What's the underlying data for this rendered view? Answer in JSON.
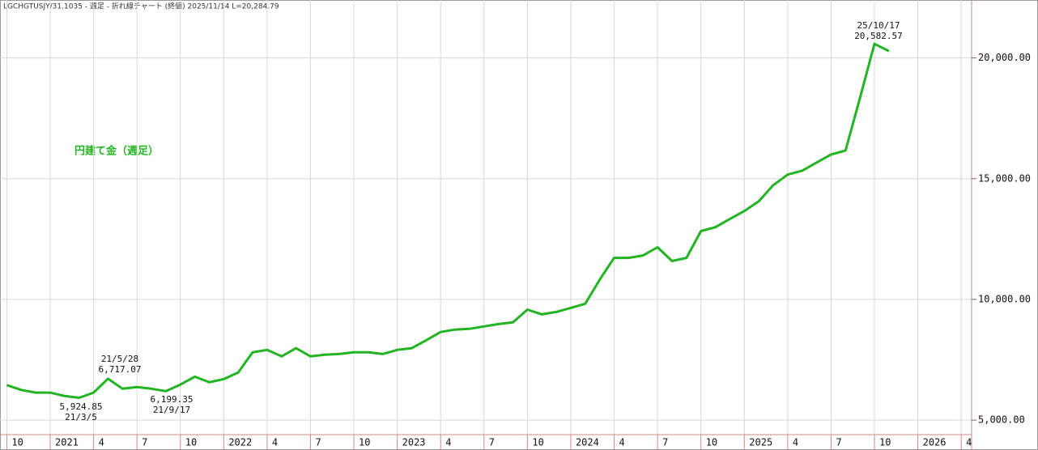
{
  "chart_data": {
    "type": "line",
    "header": "LGCHGTUSJY/31.1035 - 週足 - 折れ線チャート (終値)  2025/11/14 L=20,284.79",
    "legend_label": "円建て金（週足）",
    "x": [
      "2020-10",
      "2020-11",
      "2020-12",
      "2021-01",
      "2021-02",
      "2021-03",
      "2021-04",
      "2021-05",
      "2021-06",
      "2021-07",
      "2021-08",
      "2021-09",
      "2021-10",
      "2021-11",
      "2021-12",
      "2022-01",
      "2022-02",
      "2022-03",
      "2022-04",
      "2022-05",
      "2022-06",
      "2022-07",
      "2022-08",
      "2022-09",
      "2022-10",
      "2022-11",
      "2022-12",
      "2023-01",
      "2023-02",
      "2023-03",
      "2023-04",
      "2023-05",
      "2023-06",
      "2023-07",
      "2023-08",
      "2023-09",
      "2023-10",
      "2023-11",
      "2023-12",
      "2024-01",
      "2024-02",
      "2024-03",
      "2024-04",
      "2024-05",
      "2024-06",
      "2024-07",
      "2024-08",
      "2024-09",
      "2024-10",
      "2024-11",
      "2024-12",
      "2025-01",
      "2025-02",
      "2025-03",
      "2025-04",
      "2025-05",
      "2025-06",
      "2025-07",
      "2025-08",
      "2025-09",
      "2025-10",
      "2025-11"
    ],
    "series": [
      {
        "name": "円建て金（週足）",
        "color": "#22b422",
        "values": [
          6450,
          6250,
          6140,
          6140,
          6000,
          5925,
          6140,
          6717,
          6300,
          6370,
          6300,
          6199,
          6470,
          6800,
          6570,
          6700,
          6970,
          7810,
          7910,
          7640,
          7980,
          7640,
          7710,
          7740,
          7810,
          7810,
          7740,
          7910,
          7980,
          8310,
          8650,
          8750,
          8780,
          8880,
          8980,
          9050,
          9580,
          9380,
          9480,
          9650,
          9820,
          10820,
          11720,
          11720,
          11820,
          12160,
          11590,
          11720,
          12830,
          12990,
          13330,
          13660,
          14060,
          14730,
          15170,
          15330,
          15670,
          16000,
          16170,
          18350,
          20583,
          20285
        ]
      }
    ],
    "ylim": [
      4400,
      22400
    ],
    "yticks": [
      {
        "value": 5000,
        "label": "5,000.00"
      },
      {
        "value": 10000,
        "label": "10,000.00"
      },
      {
        "value": 15000,
        "label": "15,000.00"
      },
      {
        "value": 20000,
        "label": "20,000.00"
      }
    ],
    "xticks": [
      {
        "value": "2020-10",
        "label": "10"
      },
      {
        "value": "2021-01",
        "label": "2021"
      },
      {
        "value": "2021-04",
        "label": "4"
      },
      {
        "value": "2021-07",
        "label": "7"
      },
      {
        "value": "2021-10",
        "label": "10"
      },
      {
        "value": "2022-01",
        "label": "2022"
      },
      {
        "value": "2022-04",
        "label": "4"
      },
      {
        "value": "2022-07",
        "label": "7"
      },
      {
        "value": "2022-10",
        "label": "10"
      },
      {
        "value": "2023-01",
        "label": "2023"
      },
      {
        "value": "2023-04",
        "label": "4"
      },
      {
        "value": "2023-07",
        "label": "7"
      },
      {
        "value": "2023-10",
        "label": "10"
      },
      {
        "value": "2024-01",
        "label": "2024"
      },
      {
        "value": "2024-04",
        "label": "4"
      },
      {
        "value": "2024-07",
        "label": "7"
      },
      {
        "value": "2024-10",
        "label": "10"
      },
      {
        "value": "2025-01",
        "label": "2025"
      },
      {
        "value": "2025-04",
        "label": "4"
      },
      {
        "value": "2025-07",
        "label": "7"
      },
      {
        "value": "2025-10",
        "label": "10"
      },
      {
        "value": "2026-01",
        "label": "2026"
      },
      {
        "value": "2026-04",
        "label": "4"
      }
    ],
    "grid": true,
    "annotations": [
      [
        "21/5/28",
        "6,717.07"
      ],
      [
        "5,924.85",
        "21/3/5"
      ],
      [
        "6,199.35",
        "21/9/17"
      ],
      [
        "25/10/17",
        "20,582.57"
      ]
    ]
  }
}
